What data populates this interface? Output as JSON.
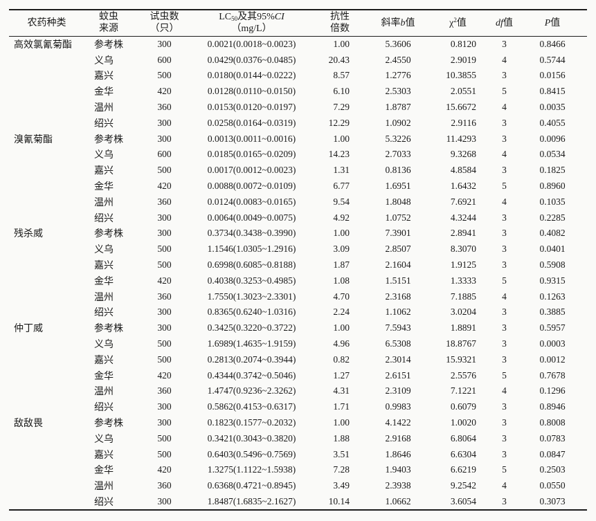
{
  "colors": {
    "background": "#fafaf8",
    "rule": "#1c1c1c",
    "text": "#191919"
  },
  "table": {
    "headers": {
      "pesticide": "农药种类",
      "source": [
        "蚊虫",
        "来源"
      ],
      "count": [
        "试虫数",
        "（只）"
      ],
      "lc50": {
        "prefix": "LC",
        "sub": "50",
        "mid": "及其95%",
        "ci": "CI",
        "unit": "（mg/L）"
      },
      "resistance": [
        "抗性",
        "倍数"
      ],
      "slope": {
        "prefix": "斜率",
        "italic": "b",
        "suffix": "值"
      },
      "chi": {
        "base": "χ",
        "sup": "2",
        "suffix": "值"
      },
      "df": {
        "italic": "df",
        "suffix": "值"
      },
      "p": {
        "italic": "P",
        "suffix": "值"
      }
    },
    "groups": [
      {
        "name": "高效氯氰菊酯",
        "rows": [
          {
            "source": "参考株",
            "n": "300",
            "lc50": "0.0021(0.0018~0.0023)",
            "rr": "1.00",
            "b": "5.3606",
            "chi2": "0.8120",
            "df": "3",
            "p": "0.8466"
          },
          {
            "source": "义乌",
            "n": "600",
            "lc50": "0.0429(0.0376~0.0485)",
            "rr": "20.43",
            "b": "2.4550",
            "chi2": "2.9019",
            "df": "4",
            "p": "0.5744"
          },
          {
            "source": "嘉兴",
            "n": "500",
            "lc50": "0.0180(0.0144~0.0222)",
            "rr": "8.57",
            "b": "1.2776",
            "chi2": "10.3855",
            "df": "3",
            "p": "0.0156"
          },
          {
            "source": "金华",
            "n": "420",
            "lc50": "0.0128(0.0110~0.0150)",
            "rr": "6.10",
            "b": "2.5303",
            "chi2": "2.0551",
            "df": "5",
            "p": "0.8415"
          },
          {
            "source": "温州",
            "n": "360",
            "lc50": "0.0153(0.0120~0.0197)",
            "rr": "7.29",
            "b": "1.8787",
            "chi2": "15.6672",
            "df": "4",
            "p": "0.0035"
          },
          {
            "source": "绍兴",
            "n": "300",
            "lc50": "0.0258(0.0164~0.0319)",
            "rr": "12.29",
            "b": "1.0902",
            "chi2": "2.9116",
            "df": "3",
            "p": "0.4055"
          }
        ]
      },
      {
        "name": "溴氰菊酯",
        "rows": [
          {
            "source": "参考株",
            "n": "300",
            "lc50": "0.0013(0.0011~0.0016)",
            "rr": "1.00",
            "b": "5.3226",
            "chi2": "11.4293",
            "df": "3",
            "p": "0.0096"
          },
          {
            "source": "义乌",
            "n": "600",
            "lc50": "0.0185(0.0165~0.0209)",
            "rr": "14.23",
            "b": "2.7033",
            "chi2": "9.3268",
            "df": "4",
            "p": "0.0534"
          },
          {
            "source": "嘉兴",
            "n": "500",
            "lc50": "0.0017(0.0012~0.0023)",
            "rr": "1.31",
            "b": "0.8136",
            "chi2": "4.8584",
            "df": "3",
            "p": "0.1825"
          },
          {
            "source": "金华",
            "n": "420",
            "lc50": "0.0088(0.0072~0.0109)",
            "rr": "6.77",
            "b": "1.6951",
            "chi2": "1.6432",
            "df": "5",
            "p": "0.8960"
          },
          {
            "source": "温州",
            "n": "360",
            "lc50": "0.0124(0.0083~0.0165)",
            "rr": "9.54",
            "b": "1.8048",
            "chi2": "7.6921",
            "df": "4",
            "p": "0.1035"
          },
          {
            "source": "绍兴",
            "n": "300",
            "lc50": "0.0064(0.0049~0.0075)",
            "rr": "4.92",
            "b": "1.0752",
            "chi2": "4.3244",
            "df": "3",
            "p": "0.2285"
          }
        ]
      },
      {
        "name": "残杀威",
        "rows": [
          {
            "source": "参考株",
            "n": "300",
            "lc50": "0.3734(0.3438~0.3990)",
            "rr": "1.00",
            "b": "7.3901",
            "chi2": "2.8941",
            "df": "3",
            "p": "0.4082"
          },
          {
            "source": "义乌",
            "n": "500",
            "lc50": "1.1546(1.0305~1.2916)",
            "rr": "3.09",
            "b": "2.8507",
            "chi2": "8.3070",
            "df": "3",
            "p": "0.0401"
          },
          {
            "source": "嘉兴",
            "n": "500",
            "lc50": "0.6998(0.6085~0.8188)",
            "rr": "1.87",
            "b": "2.1604",
            "chi2": "1.9125",
            "df": "3",
            "p": "0.5908"
          },
          {
            "source": "金华",
            "n": "420",
            "lc50": "0.4038(0.3253~0.4985)",
            "rr": "1.08",
            "b": "1.5151",
            "chi2": "1.3333",
            "df": "5",
            "p": "0.9315"
          },
          {
            "source": "温州",
            "n": "360",
            "lc50": "1.7550(1.3023~2.3301)",
            "rr": "4.70",
            "b": "2.3168",
            "chi2": "7.1885",
            "df": "4",
            "p": "0.1263"
          },
          {
            "source": "绍兴",
            "n": "300",
            "lc50": "0.8365(0.6240~1.0316)",
            "rr": "2.24",
            "b": "1.1062",
            "chi2": "3.0204",
            "df": "3",
            "p": "0.3885"
          }
        ]
      },
      {
        "name": "仲丁威",
        "rows": [
          {
            "source": "参考株",
            "n": "300",
            "lc50": "0.3425(0.3220~0.3722)",
            "rr": "1.00",
            "b": "7.5943",
            "chi2": "1.8891",
            "df": "3",
            "p": "0.5957"
          },
          {
            "source": "义乌",
            "n": "500",
            "lc50": "1.6989(1.4635~1.9159)",
            "rr": "4.96",
            "b": "6.5308",
            "chi2": "18.8767",
            "df": "3",
            "p": "0.0003"
          },
          {
            "source": "嘉兴",
            "n": "500",
            "lc50": "0.2813(0.2074~0.3944)",
            "rr": "0.82",
            "b": "2.3014",
            "chi2": "15.9321",
            "df": "3",
            "p": "0.0012"
          },
          {
            "source": "金华",
            "n": "420",
            "lc50": "0.4344(0.3742~0.5046)",
            "rr": "1.27",
            "b": "2.6151",
            "chi2": "2.5576",
            "df": "5",
            "p": "0.7678"
          },
          {
            "source": "温州",
            "n": "360",
            "lc50": "1.4747(0.9236~2.3262)",
            "rr": "4.31",
            "b": "2.3109",
            "chi2": "7.1221",
            "df": "4",
            "p": "0.1296"
          },
          {
            "source": "绍兴",
            "n": "300",
            "lc50": "0.5862(0.4153~0.6317)",
            "rr": "1.71",
            "b": "0.9983",
            "chi2": "0.6079",
            "df": "3",
            "p": "0.8946"
          }
        ]
      },
      {
        "name": "敌敌畏",
        "rows": [
          {
            "source": "参考株",
            "n": "300",
            "lc50": "0.1823(0.1577~0.2032)",
            "rr": "1.00",
            "b": "4.1422",
            "chi2": "1.0020",
            "df": "3",
            "p": "0.8008"
          },
          {
            "source": "义乌",
            "n": "500",
            "lc50": "0.3421(0.3043~0.3820)",
            "rr": "1.88",
            "b": "2.9168",
            "chi2": "6.8064",
            "df": "3",
            "p": "0.0783"
          },
          {
            "source": "嘉兴",
            "n": "500",
            "lc50": "0.6403(0.5496~0.7569)",
            "rr": "3.51",
            "b": "1.8646",
            "chi2": "6.6304",
            "df": "3",
            "p": "0.0847"
          },
          {
            "source": "金华",
            "n": "420",
            "lc50": "1.3275(1.1122~1.5938)",
            "rr": "7.28",
            "b": "1.9403",
            "chi2": "6.6219",
            "df": "5",
            "p": "0.2503"
          },
          {
            "source": "温州",
            "n": "360",
            "lc50": "0.6368(0.4721~0.8945)",
            "rr": "3.49",
            "b": "2.3938",
            "chi2": "9.2542",
            "df": "4",
            "p": "0.0550"
          },
          {
            "source": "绍兴",
            "n": "300",
            "lc50": "1.8487(1.6835~2.1627)",
            "rr": "10.14",
            "b": "1.0662",
            "chi2": "3.6054",
            "df": "3",
            "p": "0.3073"
          }
        ]
      }
    ]
  }
}
